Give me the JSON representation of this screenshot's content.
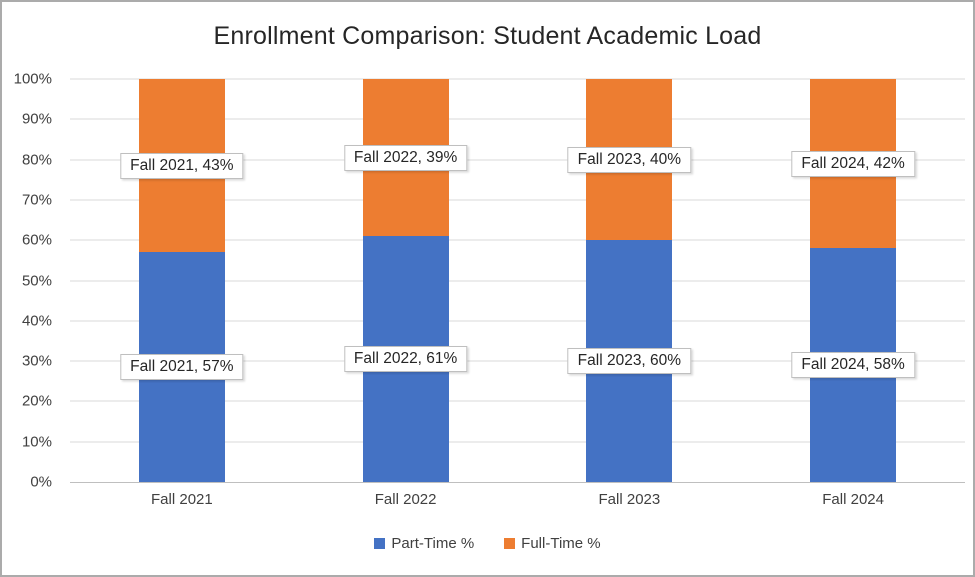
{
  "chart_data": {
    "type": "bar",
    "subtype": "stacked-column",
    "title": "Enrollment Comparison: Student Academic Load",
    "categories": [
      "Fall 2021",
      "Fall 2022",
      "Fall 2023",
      "Fall 2024"
    ],
    "series": [
      {
        "name": "Part-Time %",
        "color": "#4472C4",
        "values": [
          57,
          61,
          60,
          58
        ],
        "data_labels": [
          "Fall 2021, 57%",
          "Fall 2022, 61%",
          "Fall 2023, 60%",
          "Fall 2024, 58%"
        ]
      },
      {
        "name": "Full-Time %",
        "color": "#ED7D31",
        "values": [
          43,
          39,
          40,
          42
        ],
        "data_labels": [
          "Fall 2021, 43%",
          "Fall 2022, 39%",
          "Fall 2023, 40%",
          "Fall 2024, 42%"
        ]
      }
    ],
    "y_axis": {
      "min": 0,
      "max": 100,
      "step": 10,
      "tick_labels": [
        "0%",
        "10%",
        "20%",
        "30%",
        "40%",
        "50%",
        "60%",
        "70%",
        "80%",
        "90%",
        "100%"
      ]
    },
    "x_axis": {
      "tick_labels": [
        "Fall 2021",
        "Fall 2022",
        "Fall 2023",
        "Fall 2024"
      ]
    },
    "legend": {
      "position": "bottom",
      "entries": [
        "Part-Time %",
        "Full-Time %"
      ]
    },
    "grid": true,
    "colors": {
      "part_time": "#4472C4",
      "full_time": "#ED7D31",
      "gridline": "#D9D9D9",
      "axis_line": "#BFBFBF",
      "data_label_border": "#BFBFBF",
      "axis_text": "#404040",
      "canvas_border": "#ABABAB"
    }
  }
}
